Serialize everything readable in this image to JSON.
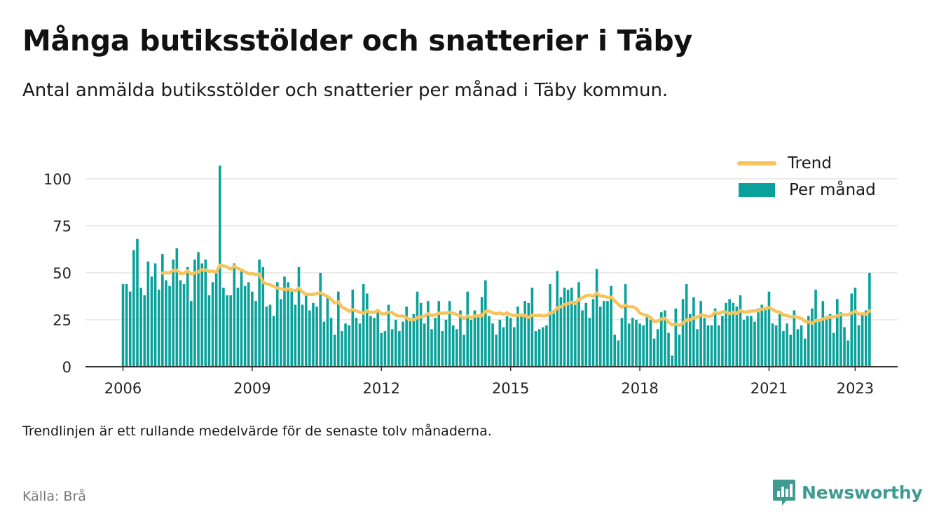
{
  "title": "Många butiksstölder och snatterier i Täby",
  "subtitle": "Antal anmälda butiksstölder och snatterier per månad i Täby kommun.",
  "note": "Trendlinjen är ett rullande medelvärde för de senaste tolv månaderna.",
  "source": "Källa: Brå",
  "brand": {
    "name": "Newsworthy",
    "icon": "newsworthy-logo-icon"
  },
  "colors": {
    "bar": "#0aa19a",
    "trend": "#f6c45c",
    "grid": "#dddddd",
    "axis": "#333333",
    "brand": "#3f9a91"
  },
  "legend": {
    "trend_label": "Trend",
    "bars_label": "Per månad",
    "placement": "top-right"
  },
  "chart_data": {
    "type": "bar",
    "start": "2006-01",
    "ylim": [
      0,
      110
    ],
    "yticks": [
      0,
      25,
      50,
      75,
      100
    ],
    "xticks": [
      "2006",
      "2009",
      "2012",
      "2015",
      "2018",
      "2021",
      "2023"
    ],
    "grid": true,
    "series": [
      {
        "name": "Per månad",
        "values": [
          44,
          44,
          40,
          62,
          68,
          42,
          38,
          56,
          48,
          55,
          41,
          60,
          46,
          43,
          57,
          63,
          46,
          44,
          53,
          35,
          57,
          61,
          55,
          57,
          38,
          45,
          50,
          107,
          42,
          38,
          38,
          55,
          42,
          51,
          43,
          45,
          40,
          35,
          57,
          53,
          32,
          33,
          27,
          45,
          36,
          48,
          45,
          40,
          33,
          53,
          33,
          38,
          30,
          34,
          32,
          50,
          24,
          37,
          26,
          17,
          40,
          19,
          23,
          22,
          41,
          26,
          23,
          44,
          39,
          27,
          26,
          30,
          18,
          19,
          33,
          20,
          25,
          19,
          24,
          32,
          26,
          28,
          40,
          34,
          23,
          35,
          20,
          26,
          35,
          19,
          25,
          35,
          22,
          20,
          30,
          17,
          40,
          25,
          30,
          27,
          37,
          46,
          27,
          23,
          17,
          25,
          21,
          27,
          26,
          21,
          32,
          27,
          35,
          34,
          42,
          19,
          20,
          21,
          22,
          44,
          30,
          51,
          37,
          42,
          41,
          42,
          35,
          45,
          30,
          34,
          26,
          36,
          52,
          32,
          35,
          35,
          43,
          17,
          14,
          26,
          44,
          23,
          26,
          25,
          23,
          22,
          28,
          25,
          15,
          20,
          29,
          30,
          18,
          6,
          31,
          17,
          36,
          44,
          28,
          37,
          20,
          35,
          26,
          22,
          22,
          31,
          22,
          27,
          34,
          36,
          34,
          32,
          38,
          25,
          27,
          27,
          24,
          31,
          33,
          31,
          40,
          23,
          22,
          28,
          19,
          23,
          17,
          30,
          20,
          22,
          15,
          27,
          31,
          41,
          24,
          35,
          27,
          28,
          18,
          36,
          29,
          21,
          14,
          39,
          42,
          22,
          28,
          30,
          50
        ]
      },
      {
        "name": "Trend"
      }
    ]
  }
}
